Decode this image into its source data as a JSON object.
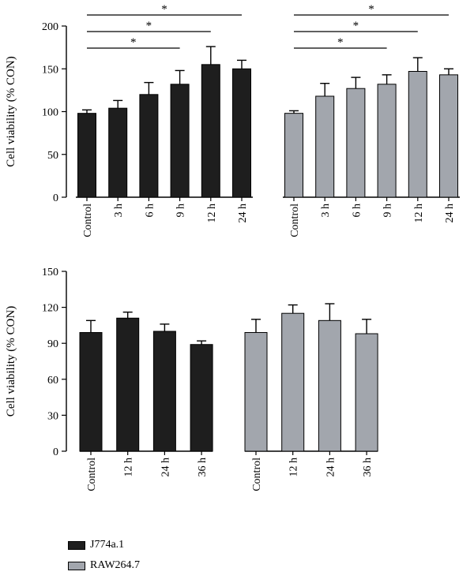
{
  "colors": {
    "series1": "#1e1e1e",
    "series2": "#a2a6ad"
  },
  "legend": {
    "items": [
      {
        "label": "J774a.1",
        "color": "#1e1e1e"
      },
      {
        "label": "RAW264.7",
        "color": "#a2a6ad"
      }
    ],
    "placement": "bottom-left"
  },
  "chart_data": [
    {
      "type": "bar",
      "ylabel": "Cell viability (% CON)",
      "ylim": [
        0,
        200
      ],
      "yticks": [
        0,
        50,
        100,
        150,
        200
      ],
      "grid": false,
      "groups": [
        {
          "series": "J774a.1",
          "categories": [
            "Control",
            "3 h",
            "6 h",
            "9 h",
            "12 h",
            "24 h"
          ],
          "values": [
            98,
            104,
            120,
            132,
            155,
            150
          ],
          "errors": [
            4,
            9,
            14,
            16,
            21,
            10
          ],
          "significance": [
            {
              "from": "Control",
              "to": "9 h",
              "label": "*"
            },
            {
              "from": "Control",
              "to": "12 h",
              "label": "*"
            },
            {
              "from": "Control",
              "to": "24 h",
              "label": "*"
            }
          ]
        },
        {
          "series": "RAW264.7",
          "categories": [
            "Control",
            "3 h",
            "6 h",
            "9 h",
            "12 h",
            "24 h"
          ],
          "values": [
            98,
            118,
            127,
            132,
            147,
            143
          ],
          "errors": [
            3,
            15,
            13,
            11,
            16,
            7
          ],
          "significance": [
            {
              "from": "Control",
              "to": "9 h",
              "label": "*"
            },
            {
              "from": "Control",
              "to": "12 h",
              "label": "*"
            },
            {
              "from": "Control",
              "to": "24 h",
              "label": "*"
            }
          ]
        }
      ]
    },
    {
      "type": "bar",
      "ylabel": "Cell viability (% CON)",
      "ylim": [
        0,
        150
      ],
      "yticks": [
        0,
        30,
        60,
        90,
        120,
        150
      ],
      "grid": false,
      "groups": [
        {
          "series": "J774a.1",
          "categories": [
            "Control",
            "12 h",
            "24 h",
            "36 h"
          ],
          "values": [
            99,
            111,
            100,
            89
          ],
          "errors": [
            10,
            5,
            6,
            3
          ],
          "significance": []
        },
        {
          "series": "RAW264.7",
          "categories": [
            "Control",
            "12 h",
            "24 h",
            "36 h"
          ],
          "values": [
            99,
            115,
            109,
            98
          ],
          "errors": [
            11,
            7,
            14,
            12
          ],
          "significance": []
        }
      ]
    }
  ]
}
